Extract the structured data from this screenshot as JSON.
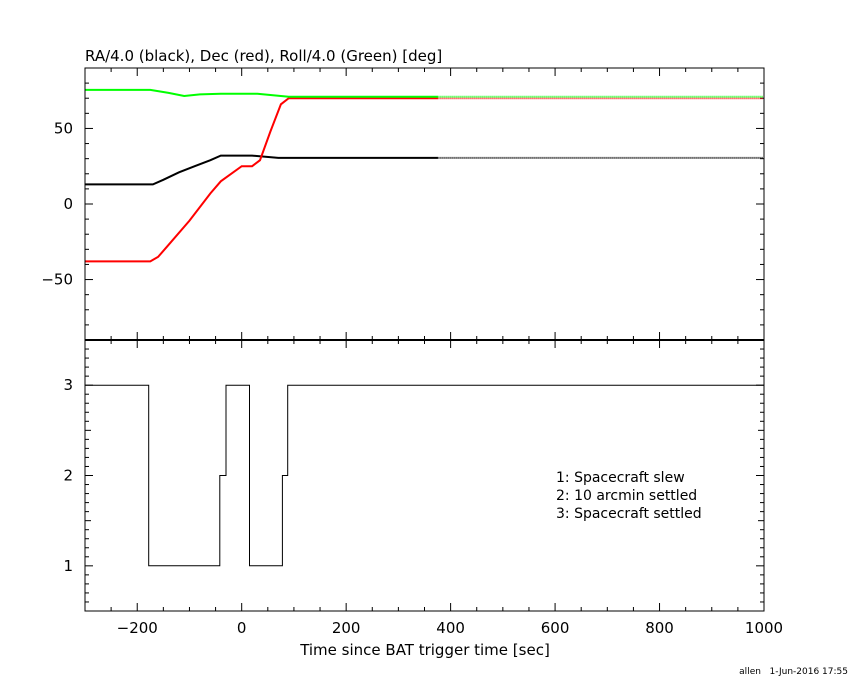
{
  "chart_data": [
    {
      "type": "line",
      "title": "RA/4.0 (black), Dec (red), Roll/4.0 (Green) [deg]",
      "xlim": [
        -300,
        1000
      ],
      "ylim": [
        -90,
        90
      ],
      "yticks": [
        -50,
        0,
        50
      ],
      "yticklabels": [
        "−50",
        "0",
        "50"
      ],
      "grid": false,
      "series": [
        {
          "color": "#000000",
          "x": [
            -300,
            -170,
            -150,
            -120,
            -90,
            -60,
            -40,
            20,
            70,
            90,
            200,
            375
          ],
          "y": [
            13,
            13,
            16,
            21,
            25,
            29,
            32,
            32,
            30.5,
            30.5,
            30.5,
            30.5
          ],
          "dotted_after": 375,
          "dotted_until": 1000
        },
        {
          "color": "#ff0000",
          "x": [
            -300,
            -175,
            -160,
            -140,
            -100,
            -60,
            -40,
            0,
            20,
            35,
            55,
            75,
            90,
            200,
            375
          ],
          "y": [
            -38,
            -38,
            -35,
            -27,
            -11,
            7,
            15,
            25,
            25,
            29,
            48,
            66,
            70,
            70,
            70
          ],
          "dotted_after": 375,
          "dotted_until": 1000
        },
        {
          "color": "#00ff00",
          "x": [
            -300,
            -175,
            -140,
            -110,
            -80,
            -40,
            30,
            60,
            90,
            200,
            375
          ],
          "y": [
            75.5,
            75.5,
            73.5,
            71.5,
            72.5,
            73,
            73,
            72,
            71,
            71,
            71
          ],
          "dotted_after": 375,
          "dotted_until": 1000
        }
      ]
    },
    {
      "type": "line",
      "step": true,
      "xlabel": "Time since BAT trigger time [sec]",
      "xlim": [
        -300,
        1000
      ],
      "ylim": [
        0.5,
        3.5
      ],
      "xticks": [
        -200,
        0,
        200,
        400,
        600,
        800,
        1000
      ],
      "xticklabels": [
        "−200",
        "0",
        "200",
        "400",
        "600",
        "800",
        "1000"
      ],
      "yticks": [
        1,
        2,
        3
      ],
      "yticklabels": [
        "1",
        "2",
        "3"
      ],
      "grid": false,
      "series": [
        {
          "color": "#000000",
          "x": [
            -300,
            -178,
            -178,
            -42,
            -42,
            -30,
            -30,
            15,
            15,
            78,
            78,
            88,
            88,
            1000
          ],
          "y": [
            3,
            3,
            1,
            1,
            2,
            2,
            3,
            3,
            1,
            1,
            2,
            2,
            3,
            3
          ]
        }
      ],
      "annotations": [
        "1: Spacecraft slew",
        "2: 10 arcmin settled",
        "3: Spacecraft settled"
      ]
    }
  ],
  "footer": "allen   1-Jun-2016 17:55"
}
